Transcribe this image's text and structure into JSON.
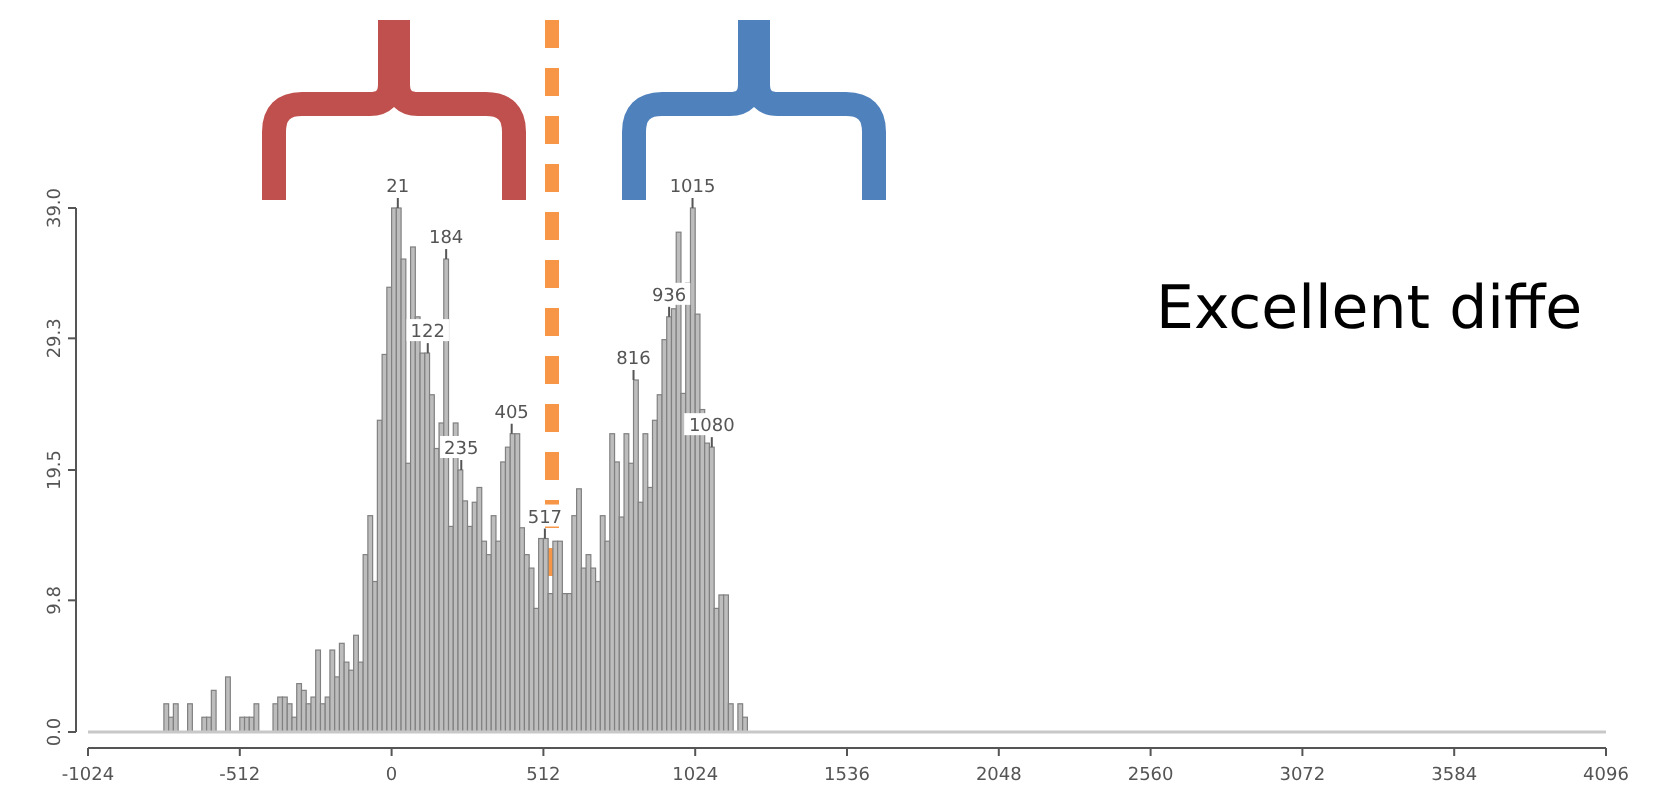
{
  "chart_data": {
    "type": "histogram",
    "color": "#bdbdbd",
    "bins": [
      -768,
      -752,
      -736,
      -720,
      -704,
      -688,
      -672,
      -656,
      -640,
      -624,
      -608,
      -592,
      -576,
      -560,
      -544,
      -528,
      -512,
      -496,
      -480,
      -464,
      -448,
      -432,
      -416,
      -400,
      -384,
      -368,
      -352,
      -336,
      -320,
      -304,
      -288,
      -272,
      -256,
      -240,
      -224,
      -208,
      -192,
      -176,
      -160,
      -144,
      -128,
      -112,
      -96,
      -80,
      -64,
      -48,
      -32,
      -16,
      0,
      16,
      32,
      48,
      64,
      80,
      96,
      112,
      128,
      144,
      160,
      176,
      192,
      208,
      224,
      240,
      256,
      272,
      288,
      304,
      320,
      336,
      352,
      368,
      384,
      400,
      416,
      432,
      448,
      464,
      480,
      496,
      512,
      528,
      544,
      560,
      576,
      592,
      608,
      624,
      640,
      656,
      672,
      688,
      704,
      720,
      736,
      752,
      768,
      784,
      800,
      816,
      832,
      848,
      864,
      880,
      896,
      912,
      928,
      944,
      960,
      976,
      992,
      1008,
      1024,
      1040,
      1056,
      1072,
      1088,
      1104,
      1120,
      1136,
      1152,
      1168,
      1184,
      1200
    ],
    "values": [
      2.1,
      1.1,
      2.1,
      0,
      0,
      2.1,
      0,
      0,
      1.1,
      1.1,
      3.1,
      0,
      0,
      4.1,
      0,
      0,
      1.1,
      1.1,
      1.1,
      2.1,
      0,
      0,
      0,
      2.1,
      2.6,
      2.6,
      2.1,
      1.1,
      3.6,
      3.1,
      2.1,
      2.6,
      6.1,
      2.1,
      2.6,
      6.1,
      4.1,
      6.6,
      5.2,
      4.6,
      7.2,
      5.2,
      13.2,
      16.1,
      11.2,
      23.2,
      28.1,
      33.1,
      39,
      39,
      35.2,
      20.0,
      36.1,
      30.9,
      28.2,
      28.2,
      25.1,
      21.1,
      23.0,
      35.2,
      15.3,
      23.0,
      19.5,
      17.2,
      15.3,
      17.1,
      18.2,
      14.2,
      13.2,
      16.1,
      14.2,
      20.1,
      21.2,
      22.2,
      22.2,
      15.2,
      13.2,
      12.2,
      9.2,
      14.4,
      14.4,
      10.3,
      14.2,
      14.2,
      10.3,
      10.3,
      16.1,
      18.1,
      12.2,
      13.2,
      12.2,
      11.2,
      16.1,
      14.2,
      22.2,
      20.1,
      16.0,
      22.2,
      20.0,
      26.2,
      17.1,
      22.2,
      18.2,
      23.2,
      25.1,
      29.2,
      30.9,
      31.5,
      37.2,
      25.2,
      33.4,
      39,
      31.1,
      24.0,
      21.5,
      21.2,
      9.2,
      10.2,
      10.2,
      2.1,
      0,
      2.1,
      1.1
    ],
    "xlim": [
      -1024,
      4096
    ],
    "xticks": [
      -1024,
      -512,
      0,
      512,
      1024,
      1536,
      2048,
      2560,
      3072,
      3584,
      4096
    ],
    "ylim": [
      0,
      39
    ],
    "yticks": [
      {
        "value": 0,
        "label": "0.0"
      },
      {
        "value": 9.8,
        "label": "9.8"
      },
      {
        "value": 19.5,
        "label": "19.5"
      },
      {
        "value": 29.3,
        "label": "29.3"
      },
      {
        "value": 39,
        "label": "39.0"
      }
    ],
    "ref_lines": [
      {
        "axis": "x",
        "value": 541,
        "color": "#f79646",
        "line_style": "dashed"
      }
    ],
    "annotations": [
      {
        "text": "21",
        "x": 21,
        "y": 39
      },
      {
        "text": "184",
        "x": 184,
        "y": 35.2
      },
      {
        "text": "122",
        "x": 122,
        "y": 28.2
      },
      {
        "text": "235",
        "x": 235,
        "y": 19.5
      },
      {
        "text": "405",
        "x": 405,
        "y": 22.2
      },
      {
        "text": "517",
        "x": 517,
        "y": 14.4
      },
      {
        "text": "816",
        "x": 816,
        "y": 26.2
      },
      {
        "text": "936",
        "x": 936,
        "y": 30.9
      },
      {
        "text": "1015",
        "x": 1015,
        "y": 39
      },
      {
        "text": "1080",
        "x": 1080,
        "y": 21.2
      },
      "Excellent diffe"
    ]
  }
}
